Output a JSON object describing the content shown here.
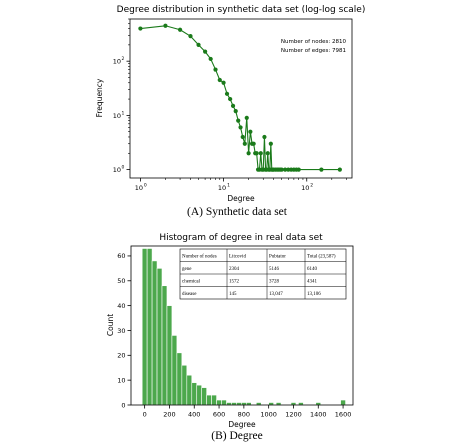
{
  "figure": {
    "caption_a": "(A) Synthetic data set",
    "caption_b": "(B) Degree"
  },
  "colors": {
    "series": "#1a7a1a",
    "bars": "#4ca84c",
    "bar_edge": "#3a8f3a"
  },
  "chart_data": [
    {
      "type": "line",
      "scale": "log-log",
      "title": "Degree distribution in synthetic data set (log-log scale)",
      "xlabel": "Degree",
      "ylabel": "Frequency",
      "xlim": [
        0.75,
        350
      ],
      "ylim": [
        0.7,
        600
      ],
      "xticks": [
        {
          "v": 1,
          "base": "10",
          "exp": "0"
        },
        {
          "v": 10,
          "base": "10",
          "exp": "1"
        },
        {
          "v": 100,
          "base": "10",
          "exp": "2"
        }
      ],
      "yticks": [
        {
          "v": 1,
          "base": "10",
          "exp": "0"
        },
        {
          "v": 10,
          "base": "10",
          "exp": "1"
        },
        {
          "v": 100,
          "base": "10",
          "exp": "2"
        }
      ],
      "annotations": [
        "Number of nodes: 2810",
        "Number of edges: 7981"
      ],
      "grid": false,
      "series": [
        {
          "x": [
            1,
            2,
            3,
            4,
            5,
            6,
            7,
            8,
            9,
            10,
            11,
            12,
            13,
            14,
            15,
            16,
            17,
            18,
            19,
            20,
            21,
            22,
            23,
            24,
            25,
            26,
            27,
            28,
            29,
            30,
            31,
            32,
            33,
            34,
            35,
            36,
            37,
            38,
            39,
            40,
            42,
            44,
            46,
            48,
            50,
            55,
            60,
            65,
            70,
            75,
            80,
            150,
            250
          ],
          "y": [
            400,
            450,
            380,
            290,
            200,
            150,
            110,
            70,
            45,
            40,
            25,
            20,
            15,
            12,
            8,
            6,
            4,
            3,
            9,
            2,
            5,
            3,
            3,
            2,
            2,
            1,
            1,
            2,
            1,
            1,
            4,
            1,
            1,
            2,
            1,
            1,
            3,
            1,
            1,
            1,
            1,
            1,
            1,
            1,
            1,
            1,
            1,
            1,
            1,
            1,
            1,
            1,
            1
          ]
        }
      ]
    },
    {
      "type": "bar",
      "title": "Histogram of degree in real data set",
      "xlabel": "Degree",
      "ylabel": "Count",
      "xlim": [
        -110,
        1680
      ],
      "ylim": [
        0,
        64
      ],
      "bin_width": 40,
      "xticks": [
        0,
        200,
        400,
        600,
        800,
        1000,
        1200,
        1400,
        1600
      ],
      "yticks": [
        0,
        10,
        20,
        30,
        40,
        50,
        60
      ],
      "grid": false,
      "bins": [
        {
          "x0": -20,
          "count": 63
        },
        {
          "x0": 20,
          "count": 63
        },
        {
          "x0": 60,
          "count": 58
        },
        {
          "x0": 100,
          "count": 55
        },
        {
          "x0": 140,
          "count": 48
        },
        {
          "x0": 180,
          "count": 40
        },
        {
          "x0": 220,
          "count": 28
        },
        {
          "x0": 260,
          "count": 21
        },
        {
          "x0": 300,
          "count": 16
        },
        {
          "x0": 340,
          "count": 12
        },
        {
          "x0": 380,
          "count": 9
        },
        {
          "x0": 420,
          "count": 8
        },
        {
          "x0": 460,
          "count": 7
        },
        {
          "x0": 500,
          "count": 4
        },
        {
          "x0": 540,
          "count": 4
        },
        {
          "x0": 580,
          "count": 2
        },
        {
          "x0": 620,
          "count": 2
        },
        {
          "x0": 660,
          "count": 1
        },
        {
          "x0": 700,
          "count": 1
        },
        {
          "x0": 740,
          "count": 1
        },
        {
          "x0": 780,
          "count": 1
        },
        {
          "x0": 820,
          "count": 1
        },
        {
          "x0": 900,
          "count": 1
        },
        {
          "x0": 1000,
          "count": 1
        },
        {
          "x0": 1060,
          "count": 1
        },
        {
          "x0": 1180,
          "count": 1
        },
        {
          "x0": 1240,
          "count": 1
        },
        {
          "x0": 1380,
          "count": 1
        },
        {
          "x0": 1580,
          "count": 2
        }
      ],
      "table": {
        "headers": [
          "Number of nodes",
          "Litcovid",
          "Pubtator",
          "Total (23,587)"
        ],
        "rows": [
          [
            "gene",
            "2304",
            "5146",
            "6140"
          ],
          [
            "chemical",
            "1572",
            "3728",
            "4341"
          ],
          [
            "disease",
            "145",
            "13,047",
            "13,106"
          ]
        ]
      }
    }
  ]
}
